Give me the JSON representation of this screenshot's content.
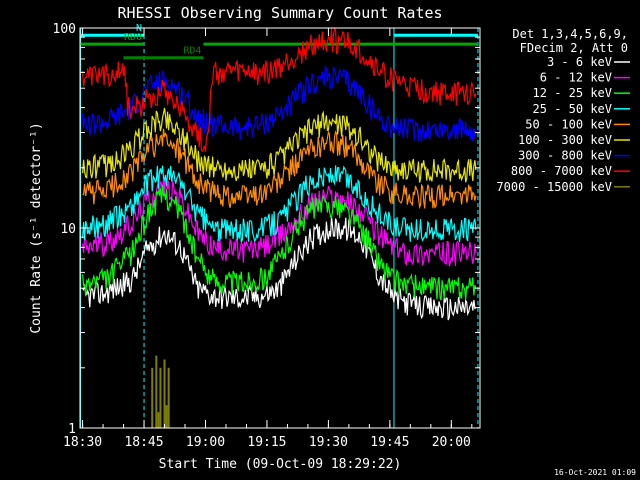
{
  "chart_data": {
    "type": "line",
    "title": "RHESSI Observing Summary Count Rates",
    "xlabel": "Start Time (09-Oct-09 18:29:22)",
    "ylabel": "Count Rate (s⁻¹ detector⁻¹)",
    "yscale": "log",
    "ylim": [
      1,
      100
    ],
    "xlim_minutes_after_1830": [
      -0.63,
      97
    ],
    "x_tick_labels": [
      "18:30",
      "18:45",
      "19:00",
      "19:15",
      "19:30",
      "19:45",
      "20:00"
    ],
    "x_tick_minutes": [
      0,
      15,
      30,
      45,
      60,
      75,
      90
    ],
    "y_tick_labels": [
      "1",
      "10",
      "100"
    ],
    "y_tick_values": [
      1,
      10,
      100
    ],
    "legend_header": [
      "Det 1,3,4,5,6,9,",
      "FDecim 2, Att 0"
    ],
    "legend_position": "right",
    "series": [
      {
        "name": "3 - 6 keV",
        "color": "#ffffff",
        "x": [
          0,
          6,
          12,
          16,
          20,
          24,
          28,
          32,
          36,
          40,
          44,
          48,
          52,
          56,
          60,
          64,
          68,
          72,
          76,
          80,
          84,
          88,
          92,
          96
        ],
        "y": [
          4.5,
          4.8,
          5.5,
          8.0,
          9.5,
          8.0,
          5.0,
          4.6,
          4.5,
          4.5,
          4.6,
          5.0,
          7.0,
          9.0,
          10.0,
          10.0,
          9.0,
          6.0,
          4.5,
          4.2,
          4.0,
          4.0,
          4.0,
          4.0
        ]
      },
      {
        "name": "6 - 12 keV",
        "color": "#ff00ff",
        "x": [
          0,
          6,
          12,
          16,
          20,
          24,
          28,
          32,
          36,
          40,
          44,
          48,
          52,
          56,
          60,
          64,
          68,
          72,
          76,
          80,
          84,
          88,
          92,
          96
        ],
        "y": [
          8.0,
          8.5,
          10.5,
          14.0,
          16.5,
          14.0,
          9.5,
          8.0,
          7.8,
          7.8,
          8.0,
          9.0,
          11.0,
          13.5,
          14.5,
          14.0,
          12.0,
          9.5,
          8.0,
          7.5,
          7.5,
          7.5,
          7.5,
          7.5
        ]
      },
      {
        "name": "12 - 25 keV",
        "color": "#00ff00",
        "x": [
          0,
          6,
          12,
          16,
          20,
          24,
          28,
          32,
          36,
          40,
          44,
          48,
          52,
          56,
          60,
          64,
          68,
          72,
          76,
          80,
          84,
          88,
          92,
          96
        ],
        "y": [
          5.2,
          5.6,
          7.5,
          12.0,
          15.0,
          12.0,
          7.0,
          5.5,
          5.4,
          5.4,
          5.6,
          7.0,
          10.0,
          12.5,
          13.0,
          12.5,
          10.0,
          7.0,
          5.5,
          5.2,
          5.0,
          5.0,
          5.0,
          5.0
        ]
      },
      {
        "name": "25 - 50 keV",
        "color": "#00ffff",
        "x": [
          0,
          6,
          12,
          16,
          20,
          24,
          28,
          32,
          36,
          40,
          44,
          48,
          52,
          56,
          60,
          64,
          68,
          72,
          76,
          80,
          84,
          88,
          92,
          96
        ],
        "y": [
          10.0,
          10.5,
          13.0,
          17.0,
          19.0,
          17.0,
          12.0,
          10.0,
          9.8,
          9.8,
          10.0,
          11.0,
          14.0,
          17.5,
          18.5,
          18.0,
          15.0,
          12.0,
          10.0,
          9.8,
          9.8,
          9.8,
          9.8,
          9.8
        ]
      },
      {
        "name": "50 - 100 keV",
        "color": "#ff8c00",
        "x": [
          0,
          6,
          12,
          16,
          20,
          24,
          28,
          32,
          36,
          40,
          44,
          48,
          52,
          56,
          60,
          64,
          68,
          72,
          76,
          80,
          84,
          88,
          92,
          96
        ],
        "y": [
          15.0,
          15.5,
          19.0,
          25.0,
          28.0,
          24.0,
          17.0,
          15.0,
          14.5,
          14.5,
          15.0,
          17.0,
          21.0,
          25.0,
          27.0,
          26.0,
          22.0,
          17.0,
          15.0,
          14.5,
          14.5,
          14.5,
          14.5,
          14.5
        ]
      },
      {
        "name": "100 - 300 keV",
        "color": "#e6e600",
        "x": [
          0,
          6,
          12,
          16,
          20,
          24,
          28,
          32,
          36,
          40,
          44,
          48,
          52,
          56,
          60,
          64,
          68,
          72,
          76,
          80,
          84,
          88,
          92,
          96
        ],
        "y": [
          20.0,
          20.5,
          25.0,
          32.0,
          36.0,
          30.0,
          22.0,
          20.0,
          19.5,
          19.5,
          20.0,
          22.0,
          27.0,
          32.0,
          34.0,
          33.0,
          28.0,
          22.0,
          20.0,
          19.5,
          19.5,
          19.5,
          19.5,
          19.5
        ]
      },
      {
        "name": "300 - 800 keV",
        "color": "#0000ff",
        "x": [
          0,
          6,
          12,
          16,
          20,
          24,
          28,
          32,
          36,
          40,
          44,
          48,
          52,
          56,
          60,
          64,
          68,
          72,
          76,
          80,
          84,
          88,
          92,
          96
        ],
        "y": [
          33.0,
          34.0,
          40.0,
          50.0,
          55.0,
          48.0,
          36.0,
          33.0,
          32.0,
          32.0,
          33.0,
          37.0,
          45.0,
          53.0,
          57.0,
          55.0,
          47.0,
          36.0,
          32.0,
          31.0,
          31.0,
          31.0,
          31.0,
          31.0
        ]
      },
      {
        "name": "800 - 7000 keV",
        "color": "#ff0000",
        "x": [
          0,
          6,
          10,
          11,
          12,
          16,
          20,
          24,
          28,
          30,
          32,
          36,
          40,
          44,
          48,
          52,
          56,
          60,
          64,
          68,
          72,
          76,
          80,
          84,
          88,
          92,
          96
        ],
        "y": [
          55.0,
          58.0,
          65.0,
          42.0,
          38.0,
          45.0,
          50.0,
          40.0,
          30.0,
          25.0,
          60.0,
          60.0,
          60.0,
          60.0,
          63.0,
          72.0,
          82.0,
          88.0,
          86.0,
          76.0,
          62.0,
          55.0,
          50.0,
          48.0,
          47.0,
          47.0,
          47.0
        ]
      },
      {
        "name": "7000 - 15000 keV",
        "color": "#808000",
        "x": [
          16.5,
          17.0,
          17.5,
          18.0,
          18.5,
          19.0,
          19.5,
          20.0,
          20.5,
          21.0,
          21.5
        ],
        "y": [
          1.0,
          2.0,
          1.0,
          2.3,
          1.2,
          2.0,
          1.0,
          2.2,
          1.3,
          2.0,
          1.0
        ]
      }
    ],
    "vertical_markers_minutes": [
      -0.5,
      15,
      76,
      96.5
    ],
    "state_bars": [
      {
        "label": "N",
        "color": "#00ffff",
        "segments_minutes": [
          [
            -0.5,
            15
          ],
          [
            76,
            96.5
          ]
        ],
        "level": 92
      },
      {
        "label": "RD0",
        "color": "#00aa00",
        "segments_minutes": [
          [
            -0.5,
            15
          ],
          [
            29.5,
            96.5
          ]
        ],
        "level": 83
      },
      {
        "label": "RD4",
        "color": "#008000",
        "segments_minutes": [
          [
            10,
            29.5
          ]
        ],
        "level": 71
      }
    ],
    "grid": false,
    "footer_date": "16-Oct-2021 01:09"
  }
}
